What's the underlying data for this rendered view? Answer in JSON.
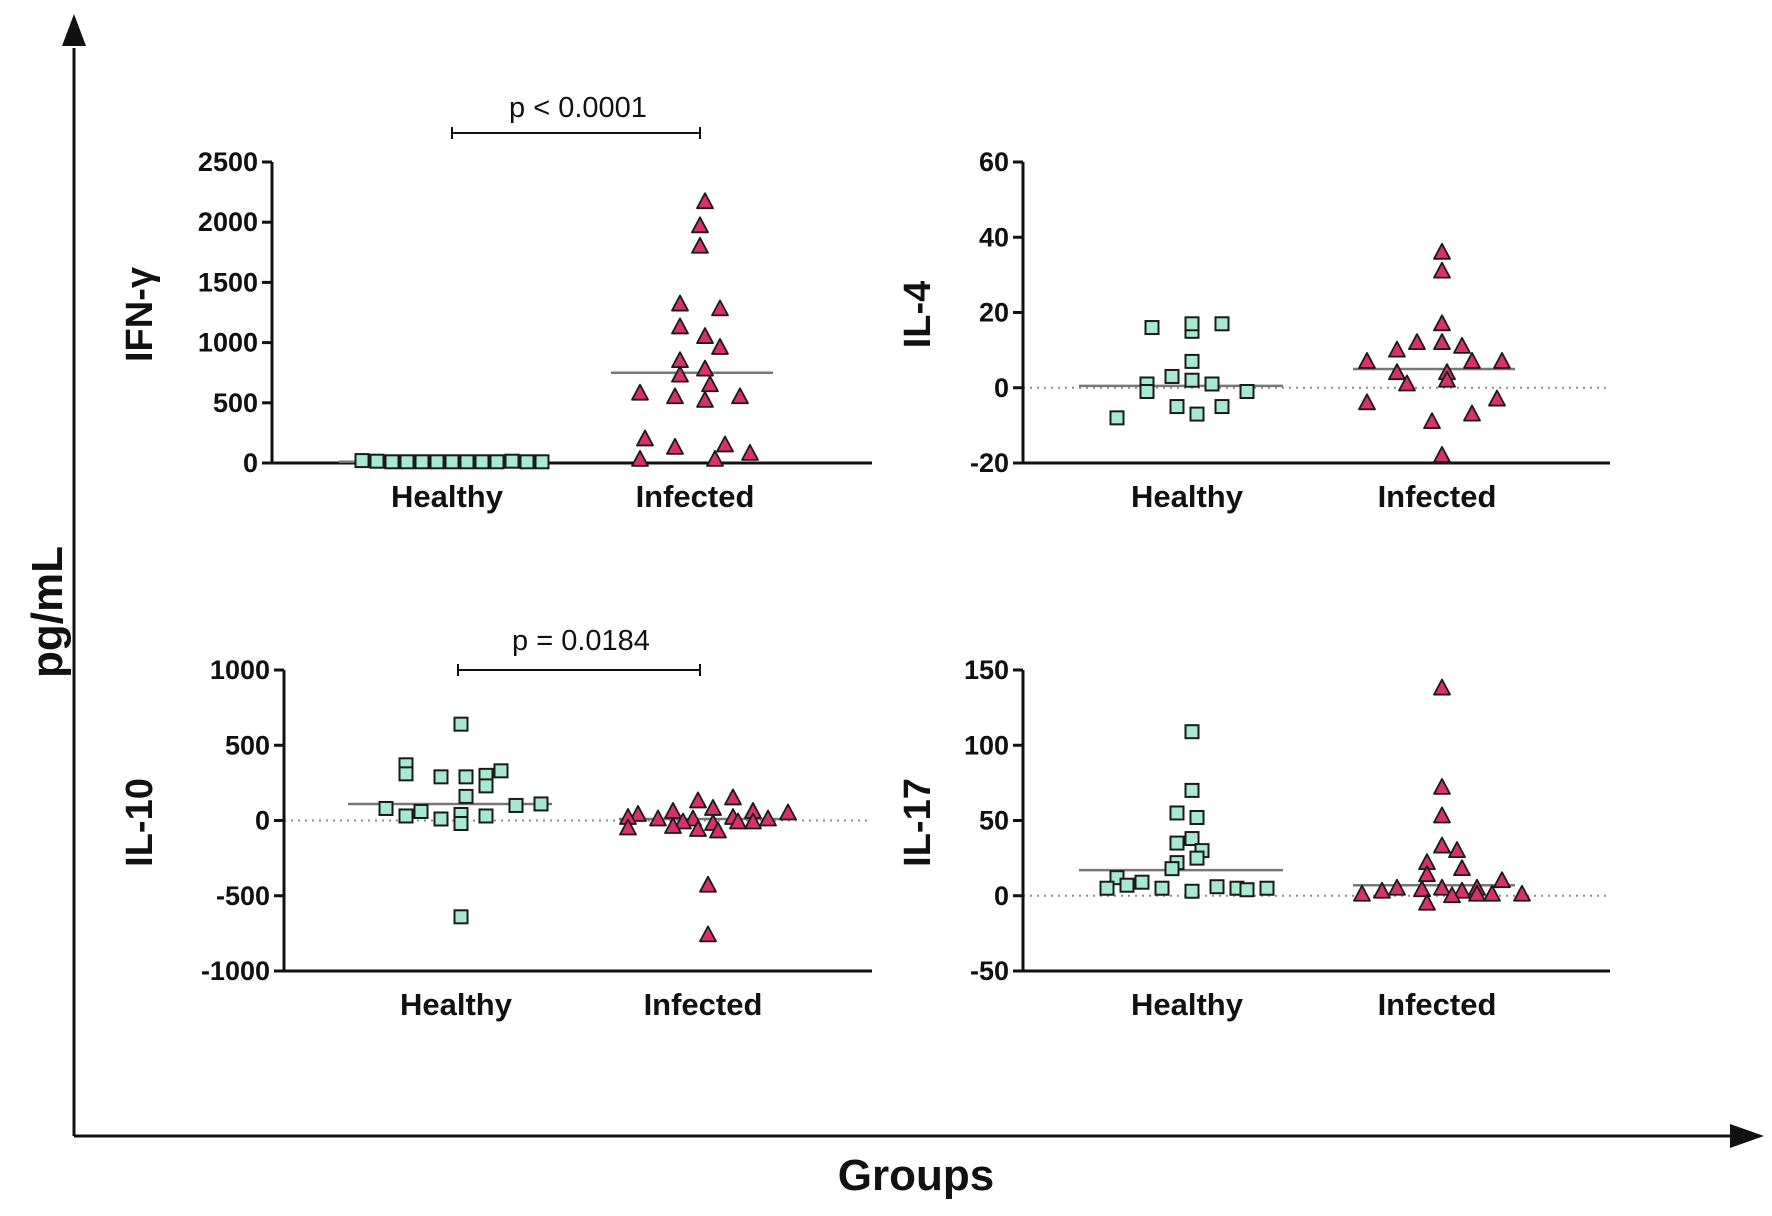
{
  "figure": {
    "outer_y_label": "pg/mL",
    "outer_x_label": "Groups",
    "colors": {
      "healthy": "#a8ead1",
      "infected": "#d8306a",
      "marker_stroke": "#1a1a1a",
      "axis": "#111111",
      "median": "#777777",
      "zero_line": "#8c8c8c"
    }
  },
  "chart_data": [
    {
      "type": "scatter",
      "title": "IFN-γ",
      "ylabel": "IFN-γ",
      "categories": [
        "Healthy",
        "Infected"
      ],
      "ylim": [
        0,
        2500
      ],
      "yticks": [
        "2500",
        "2000",
        "1500",
        "1000",
        "500",
        "0"
      ],
      "ytick_values": [
        2500,
        2000,
        1500,
        1000,
        500,
        0
      ],
      "zero_line": false,
      "annotation": "p < 0.0001",
      "series": [
        {
          "name": "Healthy",
          "marker": "square",
          "median": 10,
          "points": [
            [
              -0.85,
              20
            ],
            [
              -0.7,
              15
            ],
            [
              -0.55,
              10
            ],
            [
              -0.4,
              10
            ],
            [
              -0.25,
              10
            ],
            [
              -0.1,
              10
            ],
            [
              0.05,
              10
            ],
            [
              0.2,
              10
            ],
            [
              0.35,
              10
            ],
            [
              0.5,
              10
            ],
            [
              0.65,
              15
            ],
            [
              0.8,
              10
            ],
            [
              0.95,
              10
            ]
          ]
        },
        {
          "name": "Infected",
          "marker": "triangle",
          "median": 750,
          "points": [
            [
              0.1,
              2170
            ],
            [
              0.05,
              1970
            ],
            [
              0.05,
              1800
            ],
            [
              -0.15,
              1320
            ],
            [
              0.25,
              1280
            ],
            [
              -0.15,
              1130
            ],
            [
              0.1,
              1050
            ],
            [
              0.25,
              960
            ],
            [
              -0.15,
              850
            ],
            [
              0.1,
              780
            ],
            [
              -0.15,
              730
            ],
            [
              0.15,
              650
            ],
            [
              -0.55,
              580
            ],
            [
              -0.2,
              550
            ],
            [
              0.45,
              550
            ],
            [
              0.1,
              520
            ],
            [
              -0.5,
              200
            ],
            [
              0.3,
              150
            ],
            [
              -0.2,
              130
            ],
            [
              0.55,
              80
            ],
            [
              -0.55,
              30
            ],
            [
              0.2,
              30
            ]
          ]
        }
      ]
    },
    {
      "type": "scatter",
      "title": "IL-4",
      "ylabel": "IL-4",
      "categories": [
        "Healthy",
        "Infected"
      ],
      "ylim": [
        -20,
        60
      ],
      "yticks": [
        "60",
        "40",
        "20",
        "0",
        "-20"
      ],
      "ytick_values": [
        60,
        40,
        20,
        0,
        -20
      ],
      "zero_line": true,
      "annotation": "",
      "series": [
        {
          "name": "Healthy",
          "marker": "square",
          "median": 0.5,
          "points": [
            [
              -0.35,
              16
            ],
            [
              0.05,
              15
            ],
            [
              0.05,
              17
            ],
            [
              0.35,
              17
            ],
            [
              0.05,
              7
            ],
            [
              -0.15,
              3
            ],
            [
              -0.4,
              1
            ],
            [
              0.05,
              2
            ],
            [
              0.25,
              1
            ],
            [
              -0.4,
              -1
            ],
            [
              0.6,
              -1
            ],
            [
              -0.1,
              -5
            ],
            [
              0.35,
              -5
            ],
            [
              -0.7,
              -8
            ],
            [
              0.1,
              -7
            ]
          ]
        },
        {
          "name": "Infected",
          "marker": "triangle",
          "median": 5,
          "points": [
            [
              0.05,
              36
            ],
            [
              0.05,
              31
            ],
            [
              0.05,
              17
            ],
            [
              -0.2,
              12
            ],
            [
              0.05,
              12
            ],
            [
              0.25,
              11
            ],
            [
              -0.4,
              10
            ],
            [
              -0.7,
              7
            ],
            [
              0.35,
              7
            ],
            [
              0.65,
              7
            ],
            [
              0.1,
              4
            ],
            [
              -0.4,
              4
            ],
            [
              0.1,
              2
            ],
            [
              -0.3,
              1
            ],
            [
              -0.7,
              -4
            ],
            [
              0.6,
              -3
            ],
            [
              0.35,
              -7
            ],
            [
              -0.05,
              -9
            ],
            [
              0.05,
              -18
            ]
          ]
        }
      ]
    },
    {
      "type": "scatter",
      "title": "IL-10",
      "ylabel": "IL-10",
      "categories": [
        "Healthy",
        "Infected"
      ],
      "ylim": [
        -1000,
        1000
      ],
      "yticks": [
        "1000",
        "500",
        "0",
        "-500",
        "-1000"
      ],
      "ytick_values": [
        1000,
        500,
        0,
        -500,
        -1000
      ],
      "zero_line": true,
      "annotation": "p = 0.0184",
      "series": [
        {
          "name": "Healthy",
          "marker": "square",
          "median": 110,
          "points": [
            [
              0.05,
              640
            ],
            [
              -0.5,
              370
            ],
            [
              0.45,
              330
            ],
            [
              -0.5,
              310
            ],
            [
              0.3,
              300
            ],
            [
              -0.15,
              290
            ],
            [
              0.1,
              290
            ],
            [
              0.3,
              230
            ],
            [
              0.1,
              160
            ],
            [
              0.85,
              110
            ],
            [
              0.6,
              100
            ],
            [
              -0.7,
              80
            ],
            [
              -0.35,
              60
            ],
            [
              0.05,
              40
            ],
            [
              -0.5,
              30
            ],
            [
              0.3,
              30
            ],
            [
              -0.15,
              10
            ],
            [
              0.05,
              -20
            ],
            [
              0.05,
              -640
            ]
          ]
        },
        {
          "name": "Infected",
          "marker": "triangle",
          "median": 10,
          "points": [
            [
              0.3,
              150
            ],
            [
              -0.05,
              130
            ],
            [
              0.1,
              80
            ],
            [
              -0.3,
              60
            ],
            [
              0.5,
              60
            ],
            [
              0.85,
              50
            ],
            [
              -0.65,
              40
            ],
            [
              -0.75,
              20
            ],
            [
              0.3,
              20
            ],
            [
              -0.45,
              10
            ],
            [
              -0.1,
              10
            ],
            [
              0.65,
              10
            ],
            [
              -0.2,
              -10
            ],
            [
              0.35,
              -10
            ],
            [
              0.5,
              -10
            ],
            [
              0.1,
              -20
            ],
            [
              -0.3,
              -40
            ],
            [
              -0.75,
              -50
            ],
            [
              -0.05,
              -60
            ],
            [
              0.15,
              -70
            ],
            [
              0.05,
              -430
            ],
            [
              0.05,
              -760
            ]
          ]
        }
      ]
    },
    {
      "type": "scatter",
      "title": "IL-17",
      "ylabel": "IL-17",
      "categories": [
        "Healthy",
        "Infected"
      ],
      "ylim": [
        -50,
        150
      ],
      "yticks": [
        "150",
        "100",
        "50",
        "0",
        "-50"
      ],
      "ytick_values": [
        150,
        100,
        50,
        0,
        -50
      ],
      "zero_line": true,
      "annotation": "",
      "series": [
        {
          "name": "Healthy",
          "marker": "square",
          "median": 17,
          "points": [
            [
              0.05,
              109
            ],
            [
              0.05,
              70
            ],
            [
              -0.1,
              55
            ],
            [
              0.1,
              52
            ],
            [
              0.05,
              38
            ],
            [
              -0.1,
              35
            ],
            [
              0.15,
              30
            ],
            [
              0.1,
              25
            ],
            [
              -0.1,
              22
            ],
            [
              -0.15,
              18
            ],
            [
              -0.7,
              12
            ],
            [
              -0.45,
              9
            ],
            [
              -0.6,
              7
            ],
            [
              0.3,
              6
            ],
            [
              0.5,
              5
            ],
            [
              -0.25,
              5
            ],
            [
              0.8,
              5
            ],
            [
              -0.8,
              5
            ],
            [
              0.6,
              4
            ],
            [
              0.05,
              3
            ]
          ]
        },
        {
          "name": "Infected",
          "marker": "triangle",
          "median": 7,
          "points": [
            [
              0.05,
              138
            ],
            [
              0.05,
              72
            ],
            [
              0.05,
              53
            ],
            [
              0.05,
              33
            ],
            [
              0.2,
              30
            ],
            [
              -0.1,
              22
            ],
            [
              0.25,
              18
            ],
            [
              -0.1,
              14
            ],
            [
              0.65,
              10
            ],
            [
              0.4,
              5
            ],
            [
              0.05,
              5
            ],
            [
              -0.4,
              5
            ],
            [
              -0.15,
              4
            ],
            [
              0.25,
              3
            ],
            [
              -0.55,
              3
            ],
            [
              0.4,
              1
            ],
            [
              0.55,
              1
            ],
            [
              0.85,
              1
            ],
            [
              -0.75,
              1
            ],
            [
              0.15,
              0
            ],
            [
              -0.1,
              -5
            ]
          ]
        }
      ]
    }
  ]
}
